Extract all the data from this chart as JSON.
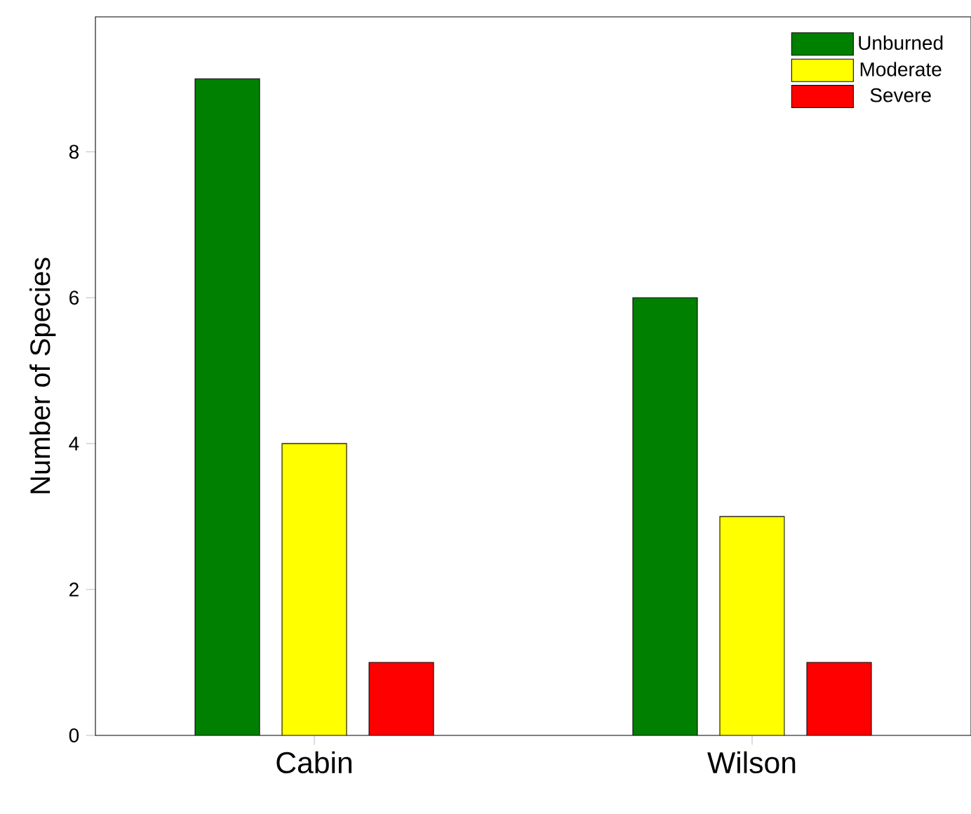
{
  "chart_data": {
    "type": "bar",
    "ylabel": "Number of Species",
    "categories": [
      "Cabin",
      "Wilson"
    ],
    "series": [
      {
        "name": "Unburned",
        "color": "#008000",
        "values": [
          9,
          6
        ]
      },
      {
        "name": "Moderate",
        "color": "#ffff00",
        "values": [
          4,
          3
        ]
      },
      {
        "name": "Severe",
        "color": "#ff0000",
        "values": [
          1,
          1
        ]
      }
    ],
    "ylim": [
      0,
      9.85
    ],
    "yticks": [
      0,
      2,
      4,
      6,
      8
    ],
    "legend": "top right",
    "grid": false
  }
}
